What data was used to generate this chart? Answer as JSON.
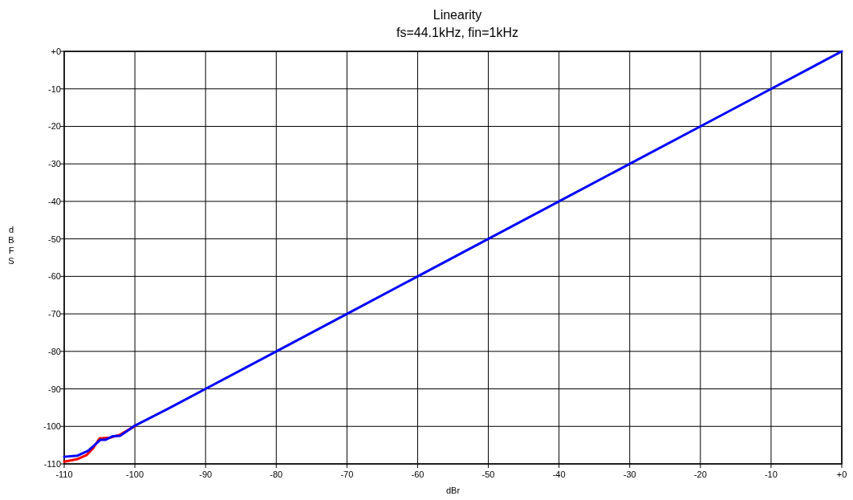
{
  "chart_data": {
    "type": "line",
    "title": "Linearity",
    "subtitle": "fs=44.1kHz, fin=1kHz",
    "xlabel": "dBr",
    "ylabel": "dBFS",
    "xlim": [
      -110,
      0
    ],
    "ylim": [
      -110,
      0
    ],
    "xticks": [
      {
        "value": -110,
        "label": "-110"
      },
      {
        "value": -100,
        "label": "-100"
      },
      {
        "value": -90,
        "label": "-90"
      },
      {
        "value": -80,
        "label": "-80"
      },
      {
        "value": -70,
        "label": "-70"
      },
      {
        "value": -60,
        "label": "-60"
      },
      {
        "value": -50,
        "label": "-50"
      },
      {
        "value": -40,
        "label": "-40"
      },
      {
        "value": -30,
        "label": "-30"
      },
      {
        "value": -20,
        "label": "-20"
      },
      {
        "value": -10,
        "label": "-10"
      },
      {
        "value": 0,
        "label": "+0"
      }
    ],
    "yticks": [
      {
        "value": -110,
        "label": "-110"
      },
      {
        "value": -100,
        "label": "-100"
      },
      {
        "value": -90,
        "label": "-90"
      },
      {
        "value": -80,
        "label": "-80"
      },
      {
        "value": -70,
        "label": "-70"
      },
      {
        "value": -60,
        "label": "-60"
      },
      {
        "value": -50,
        "label": "-50"
      },
      {
        "value": -40,
        "label": "-40"
      },
      {
        "value": -30,
        "label": "-30"
      },
      {
        "value": -20,
        "label": "-20"
      },
      {
        "value": -10,
        "label": "-10"
      },
      {
        "value": 0,
        "label": "+0"
      }
    ],
    "grid": true,
    "marker": "none",
    "line_style": "solid",
    "series": [
      {
        "color": "#ff0000",
        "x": [
          -110,
          -108.1,
          -106.8,
          -105.9,
          -105,
          -103.5,
          -102.2,
          -101,
          -100
        ],
        "values": [
          -109.4,
          -108.7,
          -107.6,
          -105.8,
          -103.2,
          -103,
          -102.3,
          -101,
          -100
        ]
      },
      {
        "color": "#0000ff",
        "x": [
          -110,
          -108.1,
          -106.6,
          -104.9,
          -104.2,
          -103.1,
          -102.1,
          -101,
          -100,
          -95,
          -90,
          -80,
          -70,
          -60,
          -50,
          -40,
          -30,
          -20,
          -10,
          0
        ],
        "values": [
          -108.1,
          -107.8,
          -106.5,
          -103.6,
          -103.6,
          -102.6,
          -102.5,
          -101.1,
          -99.8,
          -95,
          -90,
          -80,
          -70,
          -60,
          -50,
          -40,
          -30,
          -20,
          -10,
          0
        ]
      }
    ]
  }
}
